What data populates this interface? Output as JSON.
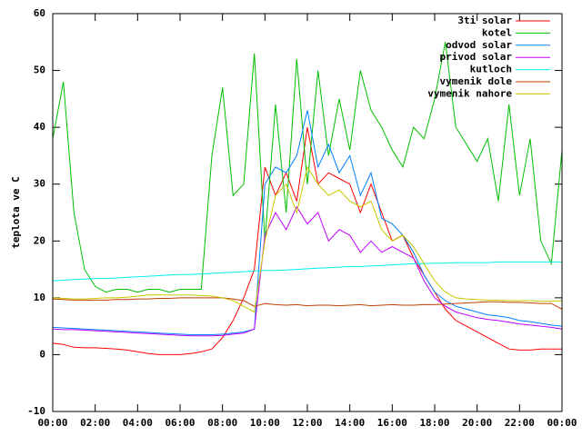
{
  "chart_data": {
    "type": "line",
    "ylabel": "teplota ve C",
    "x": [
      0,
      0.5,
      1,
      1.5,
      2,
      2.5,
      3,
      3.5,
      4,
      4.5,
      5,
      5.5,
      6,
      6.5,
      7,
      7.5,
      8,
      8.5,
      9,
      9.5,
      10,
      10.5,
      11,
      11.5,
      12,
      12.5,
      13,
      13.5,
      14,
      14.5,
      15,
      15.5,
      16,
      16.5,
      17,
      17.5,
      18,
      18.5,
      19,
      19.5,
      20,
      20.5,
      21,
      21.5,
      22,
      22.5,
      23,
      23.5,
      24
    ],
    "xlim": [
      0,
      24
    ],
    "xticks": [
      {
        "value": 0,
        "label": "00:00"
      },
      {
        "value": 2,
        "label": "02:00"
      },
      {
        "value": 4,
        "label": "04:00"
      },
      {
        "value": 6,
        "label": "06:00"
      },
      {
        "value": 8,
        "label": "08:00"
      },
      {
        "value": 10,
        "label": "10:00"
      },
      {
        "value": 12,
        "label": "12:00"
      },
      {
        "value": 14,
        "label": "14:00"
      },
      {
        "value": 16,
        "label": "16:00"
      },
      {
        "value": 18,
        "label": "18:00"
      },
      {
        "value": 20,
        "label": "20:00"
      },
      {
        "value": 22,
        "label": "22:00"
      },
      {
        "value": 24,
        "label": "00:00"
      }
    ],
    "ylim": [
      -10,
      60
    ],
    "yticks": [
      -10,
      0,
      10,
      20,
      30,
      40,
      50,
      60
    ],
    "legend": "top-right",
    "series": [
      {
        "name": "3ti solar",
        "color": "#ff0000",
        "values": [
          2,
          1.8,
          1.3,
          1.2,
          1.2,
          1.1,
          1,
          0.8,
          0.5,
          0.2,
          0,
          0,
          0,
          0.2,
          0.5,
          1,
          3,
          6,
          10,
          15,
          33,
          28,
          32,
          27,
          40,
          30,
          32,
          31,
          30,
          25,
          30,
          25,
          20,
          21,
          17,
          14,
          11,
          8,
          6,
          5,
          4,
          3,
          2,
          1,
          0.8,
          0.8,
          1,
          1,
          1
        ]
      },
      {
        "name": "kotel",
        "color": "#00c000",
        "values": [
          38,
          48,
          25,
          15,
          12,
          11,
          11.5,
          11.5,
          11,
          11.5,
          11.5,
          11,
          11.5,
          11.5,
          11.5,
          35,
          47,
          28,
          30,
          53,
          20,
          44,
          25,
          52,
          30,
          50,
          35,
          45,
          36,
          50,
          43,
          40,
          36,
          33,
          40,
          38,
          45,
          55,
          40,
          37,
          34,
          38,
          27,
          44,
          28,
          38,
          20,
          16,
          36
        ]
      },
      {
        "name": "odvod solar",
        "color": "#0080ff",
        "values": [
          4.8,
          4.7,
          4.6,
          4.5,
          4.4,
          4.3,
          4.2,
          4.1,
          4,
          3.9,
          3.8,
          3.7,
          3.6,
          3.5,
          3.5,
          3.5,
          3.6,
          3.8,
          4,
          4.5,
          30,
          33,
          32,
          35,
          43,
          33,
          37,
          32,
          35,
          28,
          32,
          24,
          23,
          21,
          18,
          14,
          11,
          9.5,
          8.5,
          8,
          7.5,
          7,
          6.8,
          6.5,
          6,
          5.8,
          5.5,
          5.2,
          5
        ]
      },
      {
        "name": "privod solar",
        "color": "#c000ff",
        "values": [
          4.5,
          4.4,
          4.4,
          4.3,
          4.2,
          4.1,
          4,
          3.9,
          3.8,
          3.7,
          3.6,
          3.5,
          3.4,
          3.3,
          3.3,
          3.3,
          3.4,
          3.6,
          3.8,
          4.5,
          21,
          25,
          22,
          26,
          23,
          25,
          20,
          22,
          21,
          18,
          20,
          18,
          19,
          18,
          17,
          13,
          10,
          8.5,
          7.5,
          7,
          6.5,
          6.2,
          6,
          5.7,
          5.4,
          5.2,
          5,
          4.8,
          4.5
        ]
      },
      {
        "name": "kutloch",
        "color": "#00eeee",
        "values": [
          13,
          13.1,
          13.2,
          13.3,
          13.4,
          13.4,
          13.5,
          13.6,
          13.7,
          13.8,
          13.9,
          14,
          14.1,
          14.1,
          14.2,
          14.3,
          14.4,
          14.5,
          14.6,
          14.7,
          14.8,
          14.8,
          14.9,
          15,
          15.1,
          15.2,
          15.3,
          15.4,
          15.5,
          15.5,
          15.6,
          15.7,
          15.8,
          15.9,
          16,
          16,
          16.1,
          16.1,
          16.2,
          16.2,
          16.2,
          16.2,
          16.3,
          16.3,
          16.3,
          16.3,
          16.3,
          16.3,
          16.3
        ]
      },
      {
        "name": "vymenik dole",
        "color": "#c04000",
        "values": [
          9.8,
          9.7,
          9.6,
          9.6,
          9.6,
          9.6,
          9.7,
          9.7,
          9.8,
          9.8,
          9.9,
          9.9,
          10,
          10,
          10,
          10,
          10,
          9.8,
          9.5,
          8.5,
          9,
          8.8,
          8.7,
          8.8,
          8.6,
          8.7,
          8.7,
          8.6,
          8.7,
          8.8,
          8.6,
          8.7,
          8.8,
          8.7,
          8.7,
          8.8,
          8.8,
          8.9,
          9,
          9.1,
          9.2,
          9.3,
          9.3,
          9.2,
          9.2,
          9.1,
          9,
          9,
          8
        ]
      },
      {
        "name": "vymenik nahore",
        "color": "#c8c800",
        "values": [
          10,
          9.9,
          9.8,
          9.8,
          9.9,
          10,
          10,
          10.1,
          10.3,
          10.5,
          10.5,
          10.5,
          10.5,
          10.5,
          10.4,
          10.3,
          10,
          9.5,
          8.5,
          7.5,
          20,
          28,
          30,
          25,
          33,
          30,
          28,
          29,
          27,
          26,
          27,
          22,
          20,
          21,
          19,
          16,
          13,
          11,
          10,
          9.8,
          9.7,
          9.6,
          9.6,
          9.5,
          9.5,
          9.5,
          9.4,
          9.4,
          9.5
        ]
      }
    ]
  }
}
